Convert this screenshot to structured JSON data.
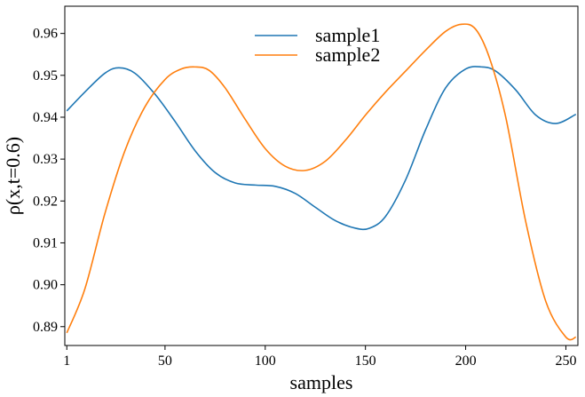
{
  "chart_data": {
    "type": "line",
    "title": "",
    "xlabel": "samples",
    "ylabel": "ρ(x,t=0.6)",
    "xlim": [
      0,
      256
    ],
    "ylim": [
      0.8855,
      0.9665
    ],
    "x_ticks": [
      1,
      50,
      100,
      150,
      200,
      250
    ],
    "x_tick_labels": [
      "1",
      "50",
      "100",
      "150",
      "200",
      "250"
    ],
    "y_ticks": [
      0.89,
      0.9,
      0.91,
      0.92,
      0.93,
      0.94,
      0.95,
      0.96
    ],
    "y_tick_labels": [
      "0.89",
      "0.90",
      "0.91",
      "0.92",
      "0.93",
      "0.94",
      "0.95",
      "0.96"
    ],
    "grid": false,
    "legend_position": "top-center",
    "series": [
      {
        "name": "sample1",
        "color": "#1f77b4",
        "x": [
          1,
          10,
          20,
          27,
          35,
          45,
          55,
          65,
          75,
          85,
          95,
          105,
          115,
          125,
          135,
          145,
          152,
          160,
          170,
          180,
          190,
          200,
          208,
          215,
          225,
          235,
          245,
          255
        ],
        "y": [
          0.9415,
          0.946,
          0.9505,
          0.9518,
          0.9505,
          0.9455,
          0.939,
          0.932,
          0.9268,
          0.9243,
          0.9238,
          0.9235,
          0.9218,
          0.9185,
          0.9153,
          0.9135,
          0.9135,
          0.9163,
          0.925,
          0.937,
          0.947,
          0.9515,
          0.952,
          0.951,
          0.9465,
          0.9405,
          0.9385,
          0.9407
        ]
      },
      {
        "name": "sample2",
        "color": "#ff7f0e",
        "x": [
          1,
          10,
          20,
          30,
          40,
          50,
          58,
          65,
          72,
          80,
          90,
          100,
          110,
          120,
          130,
          140,
          150,
          160,
          170,
          180,
          190,
          198,
          205,
          212,
          220,
          230,
          240,
          250,
          255
        ],
        "y": [
          0.8885,
          0.899,
          0.917,
          0.932,
          0.9425,
          0.949,
          0.9515,
          0.952,
          0.9512,
          0.947,
          0.9395,
          0.9325,
          0.9283,
          0.9273,
          0.9295,
          0.9345,
          0.9405,
          0.946,
          0.951,
          0.956,
          0.9605,
          0.9622,
          0.961,
          0.954,
          0.94,
          0.915,
          0.896,
          0.8875,
          0.8875
        ]
      }
    ]
  }
}
